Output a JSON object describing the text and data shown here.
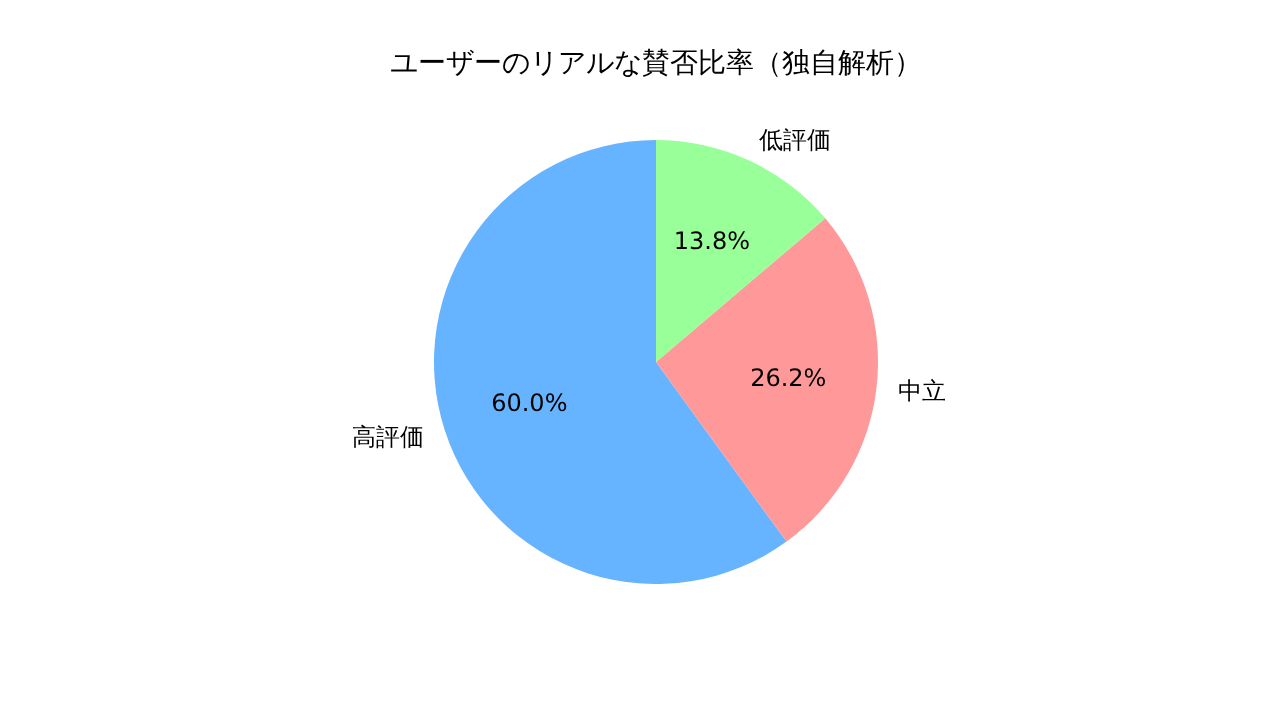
{
  "chart_data": {
    "type": "pie",
    "title": "ユーザーのリアルな賛否比率（独自解析）",
    "categories": [
      "高評価",
      "中立",
      "低評価"
    ],
    "values": [
      60.0,
      26.2,
      13.8
    ],
    "value_labels": [
      "60.0%",
      "26.2%",
      "13.8%"
    ],
    "colors": [
      "#66b3ff",
      "#ff9999",
      "#99ff99"
    ]
  }
}
